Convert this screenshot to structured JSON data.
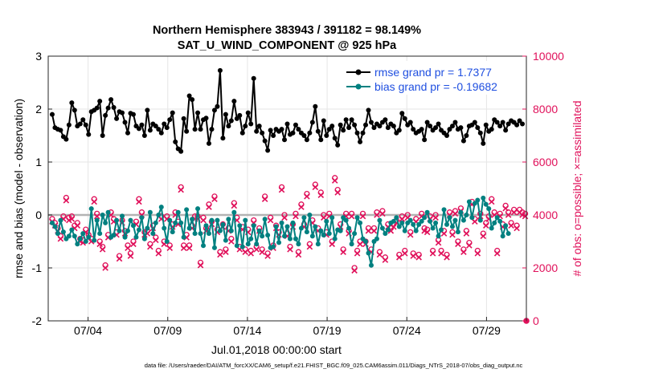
{
  "chart_data": {
    "type": "line",
    "title_line1": "Northern Hemisphere 383943 / 391182 = 98.149%",
    "title_line2": "SAT_U_WIND_COMPONENT @ 925 hPa",
    "ylabel_left": "rmse and bias (model - observation)",
    "ylabel_right": "# of obs: o=possible; ×=assimilated",
    "xlabel": "Jul.01,2018 00:00:00 start",
    "footer": "data file: /Users/raeder/DAI/ATM_forcXX/CAM6_setup/f.e21.FHIST_BGC.f09_025.CAM6assim.011/Diags_NTrS_2018-07/obs_diag_output.nc",
    "x_range": [
      1.5,
      31.5
    ],
    "ylim_left": [
      -2,
      3
    ],
    "ylim_right": [
      0,
      10000
    ],
    "x_ticks": [
      4,
      9,
      14,
      19,
      24,
      29
    ],
    "x_tick_labels": [
      "07/04",
      "07/09",
      "07/14",
      "07/19",
      "07/24",
      "07/29"
    ],
    "y_left_ticks": [
      -2,
      -1,
      0,
      1,
      2,
      3
    ],
    "y_left_tick_labels": [
      "-2",
      "-1",
      "0",
      "1",
      "2",
      "3"
    ],
    "y_right_ticks": [
      0,
      2000,
      4000,
      6000,
      8000,
      10000
    ],
    "y_right_tick_labels": [
      "0",
      "2000",
      "4000",
      "6000",
      "8000",
      "10000"
    ],
    "grid": true,
    "legend_position": "top-right",
    "colors": {
      "rmse": "#000000",
      "bias": "#008080",
      "obs": "#e0105a",
      "zero_line": "#b3b3b3",
      "legend_text": "#1f4fe0",
      "grid": "#e6e6e6"
    },
    "series": [
      {
        "name": "rmse grand pr = 1.7377",
        "marker": "dot",
        "values": [
          1.9,
          1.65,
          1.62,
          1.6,
          1.48,
          1.43,
          1.7,
          2.12,
          1.98,
          1.68,
          1.72,
          1.8,
          1.7,
          1.52,
          1.95,
          1.98,
          2.02,
          2.15,
          1.5,
          1.88,
          2.02,
          2.18,
          2.03,
          1.82,
          1.95,
          1.93,
          1.75,
          1.55,
          1.92,
          1.9,
          1.68,
          1.63,
          1.7,
          1.5,
          1.98,
          1.6,
          1.72,
          1.68,
          1.62,
          1.55,
          1.72,
          1.65,
          1.8,
          1.93,
          1.38,
          1.25,
          1.2,
          1.82,
          1.58,
          2.25,
          2.18,
          1.62,
          1.93,
          1.62,
          1.8,
          1.83,
          1.35,
          1.62,
          1.98,
          2.05,
          2.73,
          1.45,
          1.9,
          1.68,
          1.78,
          2.15,
          1.82,
          1.88,
          1.55,
          1.68,
          1.93,
          1.72,
          2.58,
          1.58,
          1.68,
          1.55,
          1.4,
          1.22,
          1.6,
          1.5,
          1.62,
          1.58,
          1.62,
          1.42,
          1.72,
          1.52,
          1.55,
          1.7,
          1.62,
          1.55,
          1.5,
          1.42,
          1.55,
          1.75,
          2.05,
          1.58,
          1.42,
          1.78,
          1.5,
          1.62,
          1.68,
          1.45,
          1.32,
          1.7,
          1.6,
          1.8,
          1.65,
          1.8,
          1.7,
          1.55,
          1.38,
          1.55,
          1.7,
          1.98,
          1.75,
          1.65,
          1.72,
          1.68,
          1.75,
          1.8,
          1.65,
          1.72,
          1.68,
          1.55,
          1.6,
          1.92,
          1.82,
          1.7,
          1.75,
          1.62,
          1.55,
          1.58,
          1.62,
          1.42,
          1.75,
          1.68,
          1.6,
          1.65,
          1.72,
          1.6,
          1.55,
          1.5,
          1.62,
          1.68,
          1.75,
          1.62,
          1.65,
          1.4,
          1.5,
          1.68,
          1.7,
          1.75,
          1.65,
          1.55,
          1.35,
          1.7,
          1.58,
          1.62,
          1.8,
          1.75,
          1.68,
          1.75,
          1.6,
          1.72,
          1.78,
          1.75,
          1.7,
          1.78,
          1.72
        ]
      },
      {
        "name": "bias grand pr = -0.19682",
        "marker": "dot",
        "values": [
          -0.15,
          -0.22,
          -0.35,
          -0.1,
          -0.32,
          -0.45,
          -0.4,
          -0.28,
          -0.4,
          -0.55,
          -0.45,
          -0.35,
          -0.5,
          -0.42,
          0.12,
          -0.48,
          -0.1,
          -0.35,
          0.0,
          -0.15,
          0.05,
          -0.42,
          -0.38,
          -0.1,
          -0.3,
          -0.02,
          -0.42,
          -0.3,
          -0.1,
          -0.2,
          -0.42,
          -0.28,
          -0.05,
          -0.45,
          -0.25,
          0.05,
          -0.35,
          -0.15,
          0.0,
          0.15,
          -0.25,
          -0.5,
          -0.1,
          -0.32,
          -0.15,
          0.05,
          -0.15,
          -0.42,
          0.1,
          -0.25,
          -0.08,
          -0.35,
          0.12,
          -0.35,
          -0.58,
          -0.2,
          -0.35,
          -0.1,
          -0.62,
          -0.1,
          -0.3,
          -0.18,
          -0.48,
          -0.08,
          -0.3,
          0.05,
          -0.58,
          -0.2,
          -0.6,
          -0.1,
          -0.55,
          -0.45,
          -0.2,
          -0.55,
          -0.3,
          -0.4,
          -0.08,
          -0.38,
          -0.62,
          -0.6,
          -0.22,
          -0.52,
          -0.15,
          -0.4,
          -0.22,
          -0.45,
          -0.15,
          -0.45,
          -0.55,
          -0.25,
          -0.05,
          -0.32,
          0.0,
          -0.4,
          -0.22,
          -0.55,
          -0.3,
          -0.38,
          -0.12,
          -0.35,
          -0.05,
          -0.45,
          -0.28,
          -0.3,
          -0.05,
          -0.1,
          -0.25,
          -0.55,
          -0.35,
          -0.05,
          -0.15,
          -0.45,
          -0.5,
          -0.72,
          -0.95,
          -0.5,
          -0.45,
          -0.1,
          -0.25,
          -0.35,
          -0.28,
          -0.15,
          -0.12,
          -0.05,
          -0.22,
          -0.15,
          -0.3,
          -0.15,
          -0.1,
          -0.18,
          -0.3,
          -0.18,
          -0.12,
          -0.05,
          0.05,
          -0.12,
          -0.25,
          -0.15,
          -0.4,
          -0.28,
          0.1,
          -0.18,
          -0.05,
          -0.22,
          -0.1,
          -0.32,
          0.05,
          -0.1,
          0.0,
          0.25,
          -0.05,
          0.22,
          0.28,
          -0.1,
          0.32,
          0.2,
          0.12,
          -0.25,
          -0.15,
          -0.05,
          -0.12,
          -0.4,
          -0.2,
          -0.35
        ]
      },
      {
        "name": "possible",
        "marker": "o",
        "values": [
          3850,
          3700,
          3500,
          3200,
          3950,
          4650,
          3900,
          3950,
          3600,
          3700,
          3100,
          3050,
          3450,
          3250,
          3100,
          4600,
          4050,
          3000,
          2800,
          2100,
          3250,
          4100,
          3850,
          3350,
          2450,
          3800,
          3400,
          2850,
          2550,
          3000,
          3750,
          4600,
          4100,
          3350,
          3400,
          2900,
          3600,
          3150,
          2650,
          3950,
          3000,
          3950,
          2850,
          3650,
          4100,
          3750,
          5050,
          2850,
          3250,
          2850,
          3600,
          3950,
          3950,
          2200,
          3900,
          3500,
          4400,
          3750,
          4700,
          3450,
          2600,
          3650,
          2700,
          3500,
          3100,
          4450,
          3900,
          2800,
          3550,
          2700,
          3450,
          2650,
          3800,
          2800,
          3500,
          2700,
          4700,
          2550,
          3900,
          2850,
          3600,
          3350,
          5050,
          4000,
          3300,
          2800,
          3650,
          4050,
          2600,
          4400,
          3650,
          4800,
          2900,
          3800,
          5150,
          3500,
          4850,
          4000,
          3350,
          4050,
          3000,
          5400,
          4950,
          3650,
          2700,
          4050,
          3400,
          4050,
          2000,
          2650,
          3000,
          4050,
          3000,
          3500,
          2700,
          3500,
          4100,
          2600,
          4150,
          2400,
          3650,
          3500,
          3650,
          3800,
          2500,
          3950,
          2650,
          4000,
          3350,
          2550,
          3850,
          2500,
          4050,
          3500,
          3450,
          3950,
          2650,
          4000,
          3050,
          2650,
          3400,
          2500,
          4100,
          3350,
          4150,
          3000,
          4250,
          2700,
          3400,
          2950,
          4500,
          3850,
          2650,
          4050,
          3300,
          3700,
          3950,
          4600,
          4100,
          2650,
          4050,
          3650,
          4350,
          4100,
          3700,
          4200,
          3600,
          4200,
          4100,
          4050
        ]
      },
      {
        "name": "assimilated",
        "marker": "x",
        "values": [
          3750,
          3600,
          3400,
          3100,
          3850,
          4550,
          3800,
          3850,
          3500,
          3600,
          3000,
          2950,
          3350,
          3150,
          3000,
          4500,
          3950,
          2900,
          2700,
          2000,
          3150,
          4000,
          3750,
          3250,
          2350,
          3700,
          3300,
          2750,
          2450,
          2900,
          3650,
          4500,
          4000,
          3250,
          3300,
          2800,
          3500,
          3050,
          2550,
          3850,
          2900,
          3850,
          2750,
          3550,
          4000,
          3650,
          4950,
          2750,
          3150,
          2750,
          3500,
          3850,
          3850,
          2100,
          3800,
          3400,
          4300,
          3650,
          4600,
          3350,
          2500,
          3550,
          2600,
          3400,
          3000,
          4350,
          3800,
          2700,
          3450,
          2600,
          3350,
          2550,
          3700,
          2700,
          3400,
          2600,
          4600,
          2450,
          3800,
          2750,
          3500,
          3250,
          4950,
          3900,
          3200,
          2700,
          3550,
          3950,
          2500,
          4300,
          3550,
          4700,
          2800,
          3700,
          5050,
          3400,
          4750,
          3900,
          3250,
          3950,
          2900,
          5300,
          4850,
          3550,
          2600,
          3950,
          3300,
          3950,
          1900,
          2550,
          2900,
          3950,
          2900,
          3400,
          2600,
          3400,
          4000,
          2500,
          4050,
          2300,
          3550,
          3400,
          3550,
          3700,
          2400,
          3850,
          2550,
          3900,
          3250,
          2450,
          3750,
          2400,
          3950,
          3400,
          3350,
          3850,
          2550,
          3900,
          2950,
          2550,
          3300,
          2400,
          4000,
          3250,
          4050,
          2900,
          4150,
          2600,
          3300,
          2850,
          4400,
          3750,
          2550,
          3950,
          3200,
          3600,
          3850,
          4500,
          4000,
          2550,
          3950,
          3550,
          4250,
          4000,
          3600,
          4100,
          3500,
          4100,
          4000,
          3950
        ]
      }
    ],
    "extra_points": [
      {
        "name": "assimilated-end",
        "x": 31.5,
        "y_right": 0
      }
    ]
  }
}
